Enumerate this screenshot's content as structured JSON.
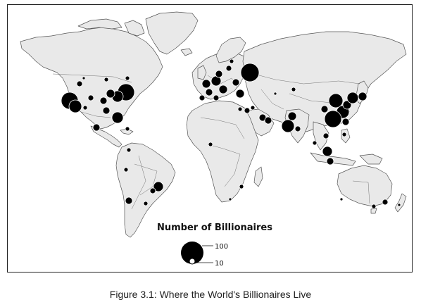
{
  "legend": {
    "title": "Number of Billionaires",
    "large_label": "100",
    "small_label": "10"
  },
  "caption": "Figure 3.1: Where the World's Billionaires Live",
  "colors": {
    "land": "#e9e9e9",
    "coast": "#555555",
    "marker": "#000000",
    "marker_outline": "#ffffff"
  }
}
